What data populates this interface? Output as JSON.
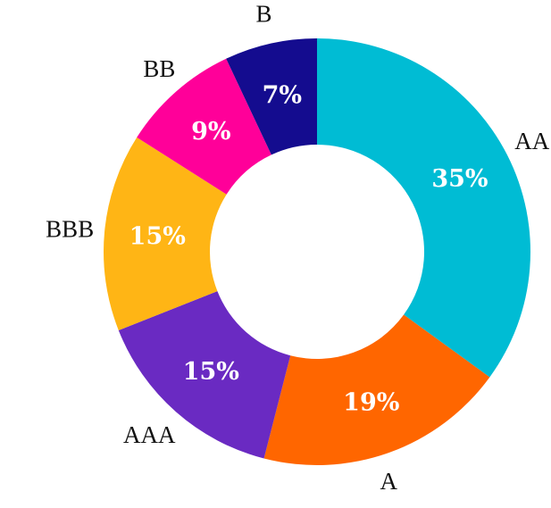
{
  "chart_data": {
    "type": "pie",
    "variant": "donut",
    "title": "",
    "categories": [
      "AA",
      "A",
      "AAA",
      "BBB",
      "BB",
      "B"
    ],
    "values": [
      35,
      19,
      15,
      15,
      9,
      7
    ],
    "value_labels": [
      "35%",
      "19%",
      "15%",
      "15%",
      "9%",
      "7%"
    ],
    "colors": [
      "#00BCD4",
      "#FF6600",
      "#6A2AC2",
      "#FFB515",
      "#FF0099",
      "#140C8F"
    ],
    "start": "12 o'clock",
    "direction": "clockwise",
    "legend": "none"
  }
}
